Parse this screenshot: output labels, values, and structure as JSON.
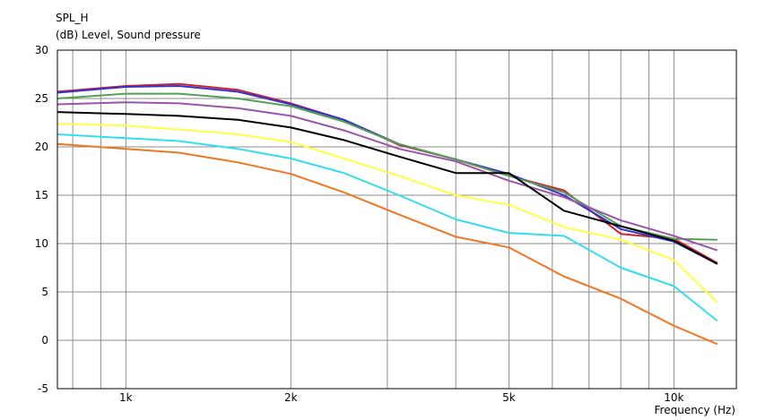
{
  "chart_data": {
    "type": "line",
    "title": "SPL_H",
    "ylabel": "(dB)  Level, Sound pressure",
    "xlabel": "Frequency  (Hz)",
    "x_scale": "log",
    "xlim": [
      750,
      13000
    ],
    "ylim": [
      -5,
      30
    ],
    "yticks": [
      30,
      25,
      20,
      15,
      10,
      5,
      0,
      -5
    ],
    "xticks": [
      {
        "value": 1000,
        "label": "1k"
      },
      {
        "value": 2000,
        "label": "2k"
      },
      {
        "value": 5000,
        "label": "5k"
      },
      {
        "value": 10000,
        "label": "10k"
      }
    ],
    "grid": true,
    "x": [
      750,
      1000,
      1250,
      1600,
      2000,
      2500,
      3150,
      4000,
      5000,
      6300,
      8000,
      10000,
      12000
    ],
    "series": [
      {
        "color": "#cc2233",
        "values": [
          25.7,
          26.3,
          26.5,
          25.9,
          24.5,
          22.8,
          20.2,
          18.7,
          17.0,
          15.5,
          11.0,
          10.5,
          8.0
        ]
      },
      {
        "color": "#3333cc",
        "values": [
          25.6,
          26.2,
          26.3,
          25.7,
          24.4,
          22.8,
          20.3,
          18.7,
          17.2,
          15.0,
          11.5,
          10.2,
          7.9
        ]
      },
      {
        "color": "#55a055",
        "values": [
          25.0,
          25.5,
          25.5,
          25.0,
          24.2,
          22.6,
          20.3,
          18.7,
          17.0,
          15.3,
          11.8,
          10.5,
          10.4
        ]
      },
      {
        "color": "#9955aa",
        "values": [
          24.4,
          24.6,
          24.5,
          24.0,
          23.2,
          21.7,
          19.8,
          18.5,
          16.5,
          14.8,
          12.4,
          10.8,
          9.3
        ]
      },
      {
        "color": "#000000",
        "values": [
          23.6,
          23.4,
          23.2,
          22.8,
          22.0,
          20.7,
          19.0,
          17.3,
          17.3,
          13.4,
          11.8,
          10.3,
          7.9
        ]
      },
      {
        "color": "#ffff44",
        "values": [
          22.4,
          22.2,
          21.8,
          21.3,
          20.5,
          18.8,
          17.0,
          15.0,
          14.0,
          11.7,
          10.4,
          8.3,
          3.9
        ]
      },
      {
        "color": "#33ddee",
        "values": [
          21.3,
          20.9,
          20.6,
          19.8,
          18.8,
          17.3,
          15.0,
          12.5,
          11.1,
          10.8,
          7.5,
          5.6,
          2.0
        ]
      },
      {
        "color": "#ee7722",
        "values": [
          20.3,
          19.8,
          19.4,
          18.4,
          17.2,
          15.3,
          13.0,
          10.7,
          9.6,
          6.6,
          4.3,
          1.5,
          -0.4
        ]
      }
    ]
  }
}
